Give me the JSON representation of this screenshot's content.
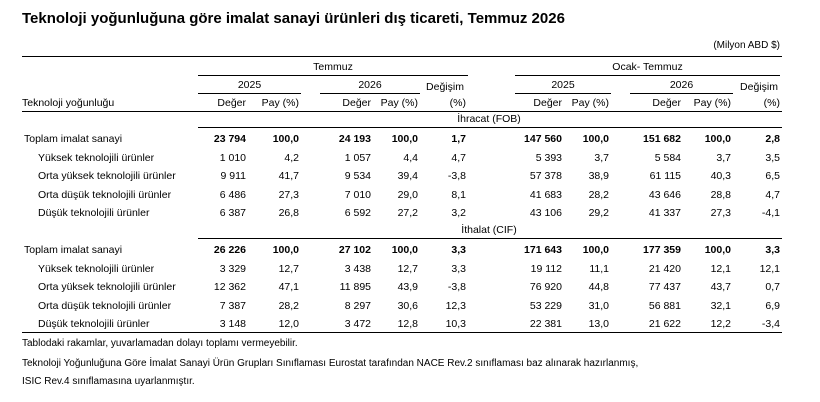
{
  "title": "Teknoloji yoğunluğuna göre imalat sanayi ürünleri dış ticareti, Temmuz 2026",
  "unit": "(Milyon ABD $)",
  "headers": {
    "group1": "Temmuz",
    "group2": "Ocak- Temmuz",
    "y2025": "2025",
    "y2026": "2026",
    "deger": "Değer",
    "pay": "Pay (%)",
    "degisim1": "Değişim",
    "degisim2": "(%)",
    "rowlabel": "Teknoloji yoğunluğu"
  },
  "sections": [
    {
      "title": "İhracat (FOB)",
      "rows": [
        {
          "label": "Toplam imalat sanayi",
          "bold": true,
          "v": [
            "23 794",
            "100,0",
            "24 193",
            "100,0",
            "1,7",
            "147 560",
            "100,0",
            "151 682",
            "100,0",
            "2,8"
          ]
        },
        {
          "label": "Yüksek teknolojili ürünler",
          "bold": false,
          "v": [
            "1 010",
            "4,2",
            "1 057",
            "4,4",
            "4,7",
            "5 393",
            "3,7",
            "5 584",
            "3,7",
            "3,5"
          ]
        },
        {
          "label": "Orta yüksek teknolojili ürünler",
          "bold": false,
          "v": [
            "9 911",
            "41,7",
            "9 534",
            "39,4",
            "-3,8",
            "57 378",
            "38,9",
            "61 115",
            "40,3",
            "6,5"
          ]
        },
        {
          "label": "Orta düşük teknolojili ürünler",
          "bold": false,
          "v": [
            "6 486",
            "27,3",
            "7 010",
            "29,0",
            "8,1",
            "41 683",
            "28,2",
            "43 646",
            "28,8",
            "4,7"
          ]
        },
        {
          "label": "Düşük teknolojili ürünler",
          "bold": false,
          "v": [
            "6 387",
            "26,8",
            "6 592",
            "27,2",
            "3,2",
            "43 106",
            "29,2",
            "41 337",
            "27,3",
            "-4,1"
          ]
        }
      ]
    },
    {
      "title": "İthalat (CIF)",
      "rows": [
        {
          "label": "Toplam imalat sanayi",
          "bold": true,
          "v": [
            "26 226",
            "100,0",
            "27 102",
            "100,0",
            "3,3",
            "171 643",
            "100,0",
            "177 359",
            "100,0",
            "3,3"
          ]
        },
        {
          "label": "Yüksek teknolojili ürünler",
          "bold": false,
          "v": [
            "3 329",
            "12,7",
            "3 438",
            "12,7",
            "3,3",
            "19 112",
            "11,1",
            "21 420",
            "12,1",
            "12,1"
          ]
        },
        {
          "label": "Orta yüksek teknolojili ürünler",
          "bold": false,
          "v": [
            "12 362",
            "47,1",
            "11 895",
            "43,9",
            "-3,8",
            "76 920",
            "44,8",
            "77 437",
            "43,7",
            "0,7"
          ]
        },
        {
          "label": "Orta düşük teknolojili ürünler",
          "bold": false,
          "v": [
            "7 387",
            "28,2",
            "8 297",
            "30,6",
            "12,3",
            "53 229",
            "31,0",
            "56 881",
            "32,1",
            "6,9"
          ]
        },
        {
          "label": "Düşük teknolojili ürünler",
          "bold": false,
          "v": [
            "3 148",
            "12,0",
            "3 472",
            "12,8",
            "10,3",
            "22 381",
            "13,0",
            "21 622",
            "12,2",
            "-3,4"
          ]
        }
      ]
    }
  ],
  "notes": [
    "Tablodaki rakamlar, yuvarlamadan dolayı toplamı vermeyebilir.",
    "Teknoloji Yoğunluğuna Göre İmalat Sanayi Ürün Grupları Sınıflaması Eurostat tarafından NACE Rev.2 sınıflaması baz alınarak hazırlanmış,",
    "ISIC Rev.4 sınıflamasına uyarlanmıştır."
  ]
}
